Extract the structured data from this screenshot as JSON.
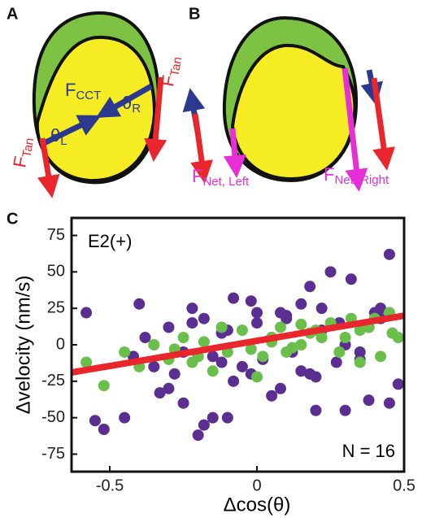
{
  "panels": {
    "a": {
      "label": "A",
      "f_cct": {
        "main": "F",
        "sub": "CCT"
      },
      "f_tan_left": {
        "main": "F",
        "sub": "Tan"
      },
      "f_tan_right": {
        "main": "F",
        "sub": "Tan"
      },
      "theta_left": {
        "main": "θ",
        "sub": "L"
      },
      "theta_right": {
        "main": "θ",
        "sub": "R"
      }
    },
    "b": {
      "label": "B",
      "f_net_left": {
        "main": "F",
        "sub": "Net, Left"
      },
      "f_net_right": {
        "main": "F",
        "sub": "Net, Right"
      }
    },
    "c": {
      "label": "C"
    }
  },
  "chart_data": {
    "type": "scatter",
    "x_label": "Δcos(θ)",
    "y_label": "Δvelocity (nm/s)",
    "annotations": [
      "E2(+)",
      "N = 16"
    ],
    "xlim": [
      -0.63,
      0.5
    ],
    "ylim": [
      -87,
      87
    ],
    "xticks": [
      -0.5,
      0,
      0.5
    ],
    "yticks": [
      -75,
      -50,
      -25,
      0,
      25,
      50,
      75
    ],
    "series": [
      {
        "color": "#5b2f91",
        "x": [
          -0.58,
          -0.55,
          -0.52,
          -0.45,
          -0.42,
          -0.38,
          -0.35,
          -0.3,
          -0.28,
          -0.25,
          -0.22,
          -0.2,
          -0.2,
          -0.18,
          -0.15,
          -0.12,
          -0.1,
          -0.08,
          -0.05,
          -0.02,
          0,
          0.02,
          0.05,
          0.08,
          0.1,
          0.12,
          0.15,
          0.18,
          0.2,
          0.22,
          0.25,
          0.28,
          0.3,
          0.32,
          0.35,
          0.38,
          0.4,
          0.42,
          0.45,
          0.48,
          -0.25,
          -0.18,
          -0.12,
          -0.08,
          -0.02,
          0.05,
          0.1,
          0.15,
          0.22,
          0.3,
          0.35,
          0.42,
          -0.4,
          -0.3,
          -0.15,
          0,
          0.18,
          0.27,
          0.45,
          -0.33,
          -0.22,
          -0.1,
          0.08,
          0.2,
          0.38
        ],
        "values": [
          22,
          -52,
          -58,
          -50,
          -8,
          5,
          -15,
          12,
          -20,
          -40,
          25,
          -62,
          -8,
          18,
          -50,
          8,
          -50,
          -25,
          -15,
          30,
          15,
          -10,
          5,
          -30,
          20,
          -5,
          28,
          40,
          -22,
          10,
          50,
          15,
          -45,
          45,
          -5,
          12,
          22,
          25,
          62,
          -27,
          -5,
          -55,
          -12,
          32,
          -20,
          -35,
          18,
          -18,
          25,
          0,
          -10,
          18,
          28,
          -30,
          -8,
          22,
          -20,
          -12,
          -40,
          -33,
          15,
          10,
          22,
          -45,
          -38
        ]
      },
      {
        "color": "#6abf4b",
        "x": [
          -0.58,
          -0.52,
          -0.45,
          -0.4,
          -0.35,
          -0.3,
          -0.25,
          -0.22,
          -0.18,
          -0.15,
          -0.1,
          -0.05,
          -0.02,
          0.02,
          0.05,
          0.08,
          0.12,
          0.15,
          0.18,
          0.22,
          0.25,
          0.28,
          0.32,
          0.35,
          0.38,
          0.42,
          0.45,
          0.48,
          0.46,
          -0.2,
          -0.12,
          0,
          0.1,
          0.2,
          0.3,
          0.4,
          -0.28,
          0.05,
          0.15,
          0.35
        ],
        "values": [
          -12,
          -28,
          -5,
          -15,
          0,
          -10,
          5,
          -12,
          2,
          -18,
          -5,
          10,
          -3,
          -8,
          5,
          12,
          -2,
          0,
          8,
          5,
          15,
          -5,
          18,
          10,
          12,
          -8,
          22,
          5,
          8,
          -8,
          12,
          -22,
          -5,
          10,
          5,
          18,
          -3,
          2,
          14,
          -12
        ]
      }
    ],
    "trend_line": {
      "color": "#e8262b",
      "x": [
        -0.63,
        0.5
      ],
      "values": [
        -19,
        20
      ]
    }
  }
}
